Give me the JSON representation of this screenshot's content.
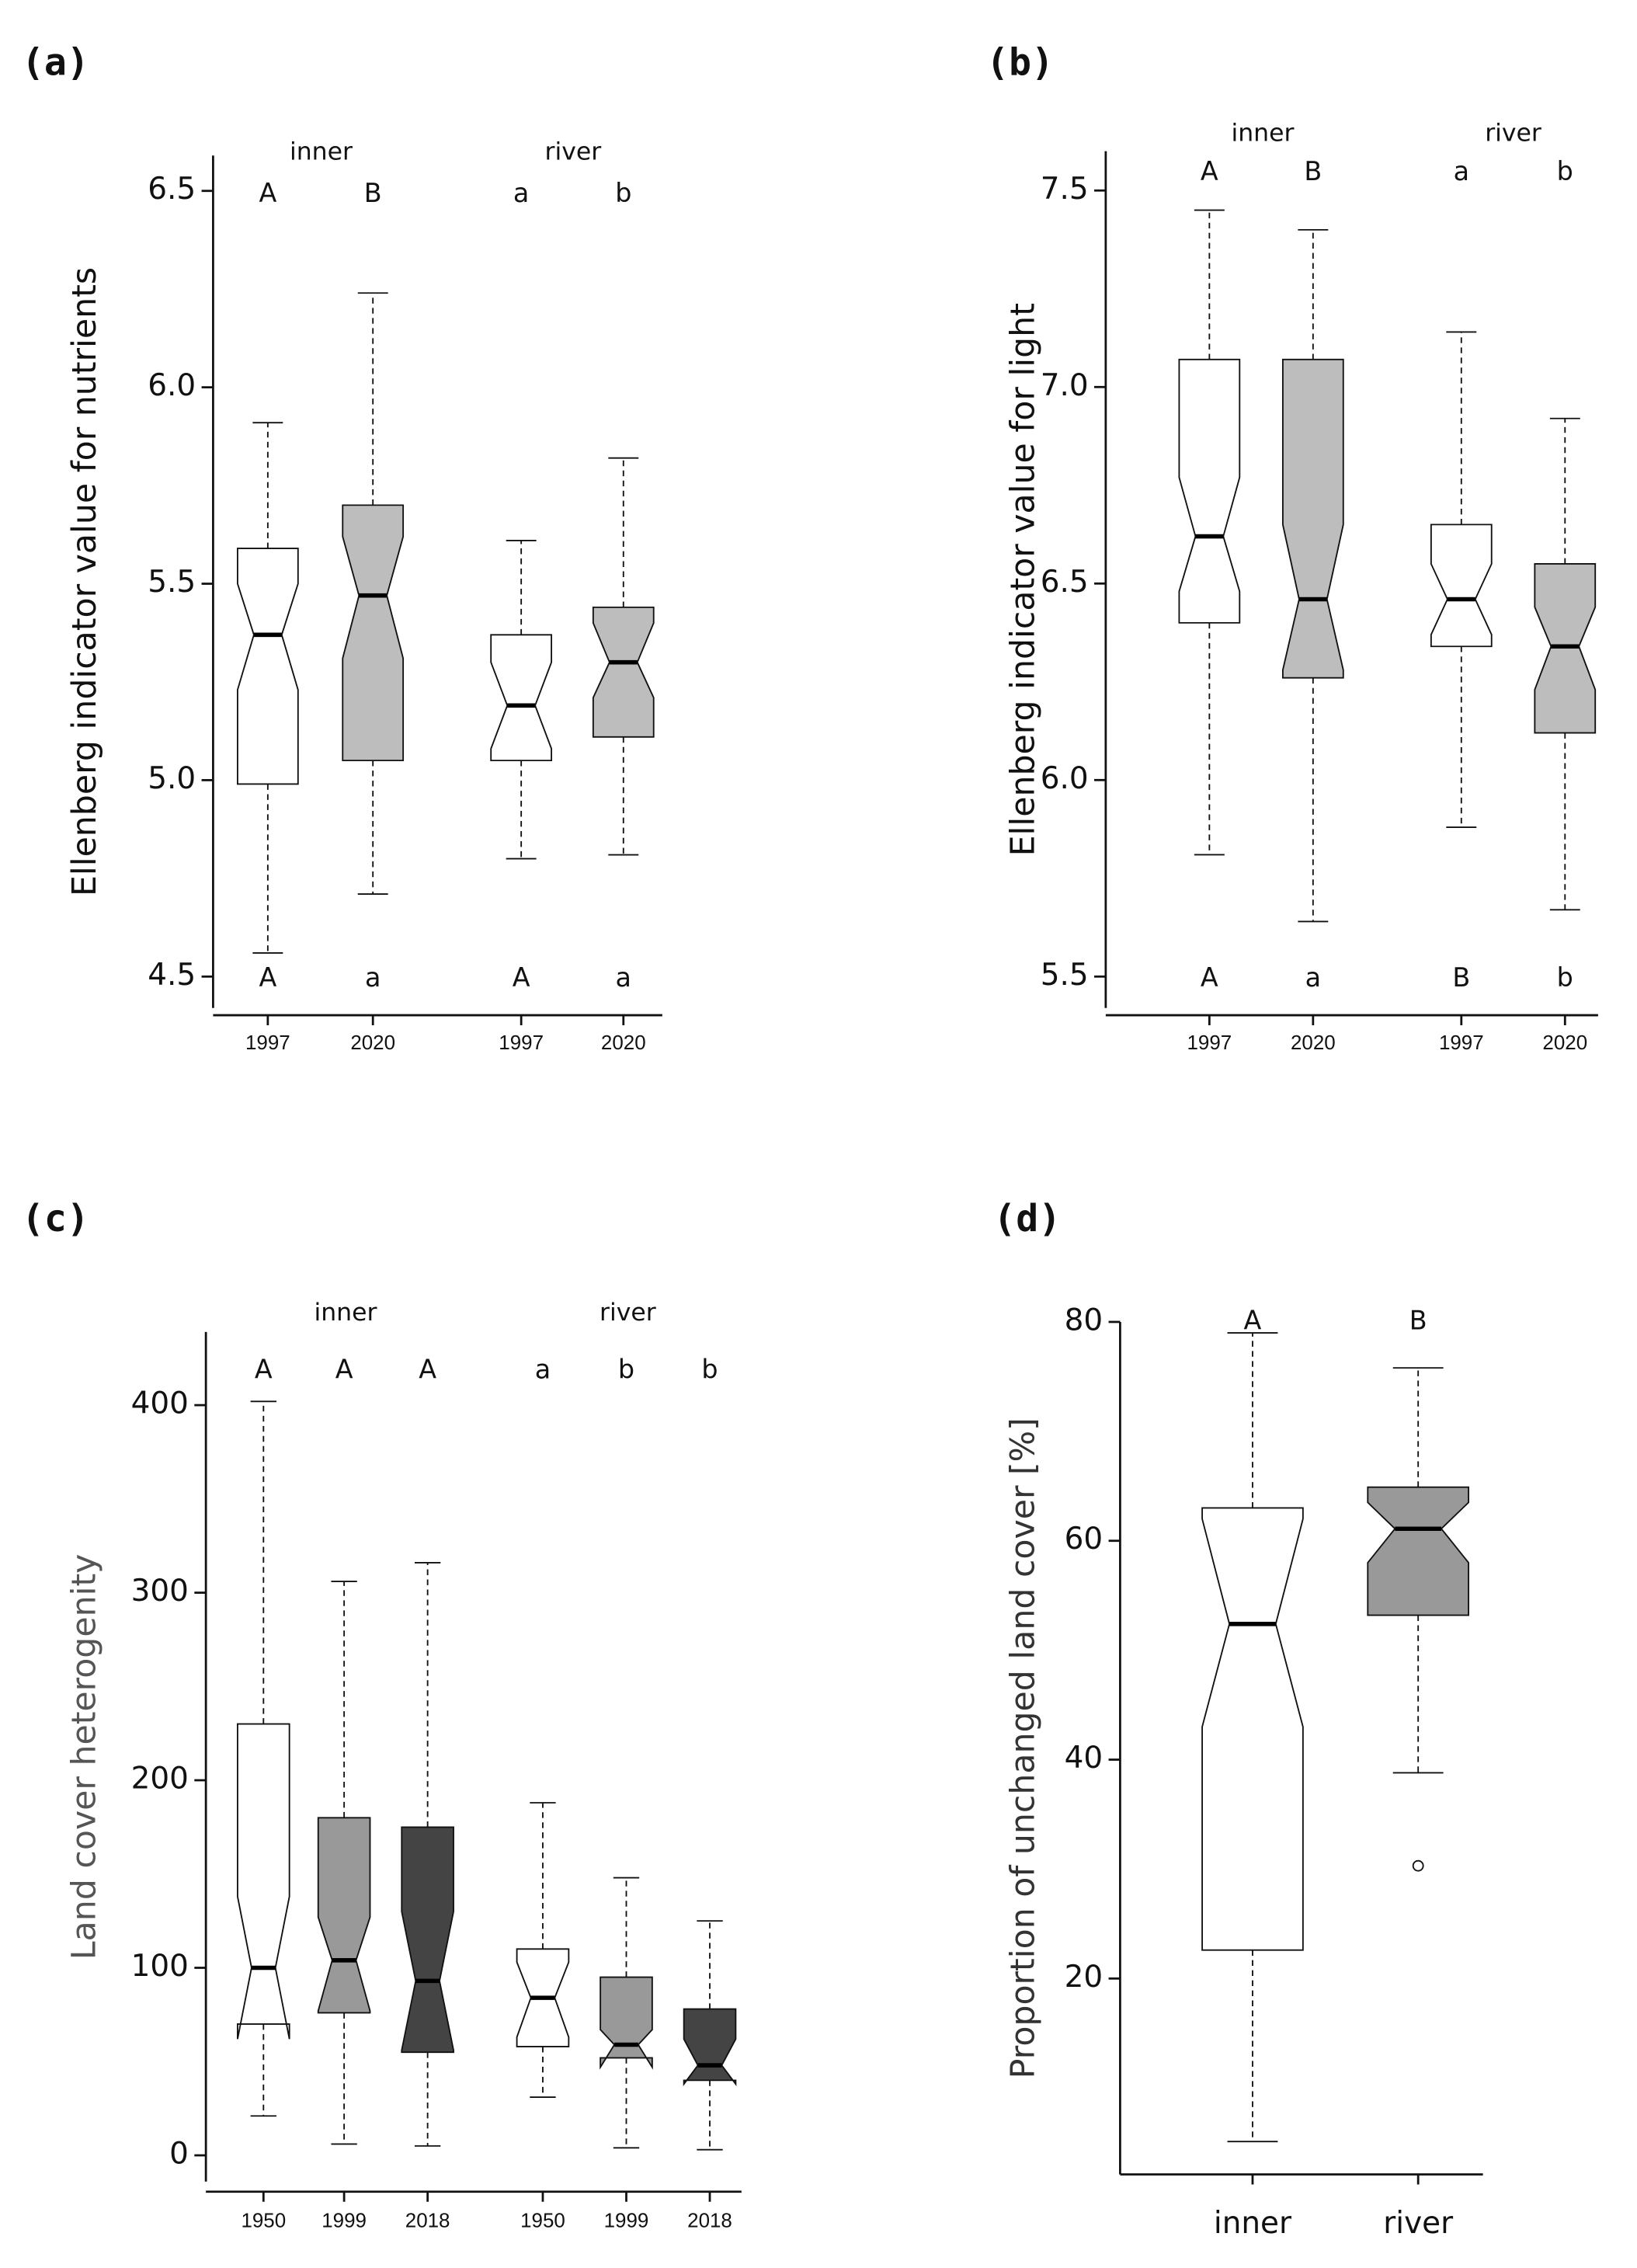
{
  "chart_data": [
    {
      "type": "box",
      "title": "(a)",
      "ylabel": "Ellenberg indicator value for nutrients",
      "groups": [
        "inner",
        "river"
      ],
      "categories": [
        "1997",
        "2020",
        "1997",
        "2020"
      ],
      "ylim": [
        4.42,
        6.59
      ],
      "yticks": [
        4.5,
        {
          "value": 5,
          "label": "5.0"
        },
        5.5,
        {
          "value": 6,
          "label": "6.0"
        },
        6.5
      ],
      "letters_top": [
        "A",
        "B",
        "a",
        "b"
      ],
      "letters_bottom": [
        "A",
        "a",
        "A",
        "a"
      ],
      "boxes": [
        {
          "whisker_low": 4.56,
          "q1": 4.99,
          "median": 5.37,
          "q3": 5.59,
          "whisker_high": 5.91,
          "notch_low": 5.23,
          "notch_high": 5.5,
          "fill": "#ffffff"
        },
        {
          "whisker_low": 4.71,
          "q1": 5.05,
          "median": 5.47,
          "q3": 5.7,
          "whisker_high": 6.24,
          "notch_low": 5.31,
          "notch_high": 5.62,
          "fill": "#bdbdbd"
        },
        {
          "whisker_low": 4.8,
          "q1": 5.05,
          "median": 5.19,
          "q3": 5.37,
          "whisker_high": 5.61,
          "notch_low": 5.08,
          "notch_high": 5.3,
          "fill": "#ffffff"
        },
        {
          "whisker_low": 4.81,
          "q1": 5.11,
          "median": 5.3,
          "q3": 5.44,
          "whisker_high": 5.82,
          "notch_low": 5.21,
          "notch_high": 5.4,
          "fill": "#bdbdbd"
        }
      ]
    },
    {
      "type": "box",
      "title": "(b)",
      "ylabel": "Ellenberg indicator value for light",
      "groups": [
        "inner",
        "river"
      ],
      "categories": [
        "1997",
        "2020",
        "1997",
        "2020"
      ],
      "ylim": [
        5.42,
        7.6
      ],
      "yticks": [
        5.5,
        {
          "value": 6,
          "label": "6.0"
        },
        6.5,
        {
          "value": 7,
          "label": "7.0"
        },
        7.5
      ],
      "letters_top": [
        "A",
        "B",
        "a",
        "b"
      ],
      "letters_bottom": [
        "A",
        "a",
        "B",
        "b"
      ],
      "boxes": [
        {
          "whisker_low": 5.81,
          "q1": 6.4,
          "median": 6.62,
          "q3": 7.07,
          "whisker_high": 7.45,
          "notch_low": 6.48,
          "notch_high": 6.77,
          "fill": "#ffffff"
        },
        {
          "whisker_low": 5.64,
          "q1": 6.26,
          "median": 6.46,
          "q3": 7.07,
          "whisker_high": 7.4,
          "notch_low": 6.28,
          "notch_high": 6.65,
          "fill": "#bdbdbd"
        },
        {
          "whisker_low": 5.88,
          "q1": 6.34,
          "median": 6.46,
          "q3": 6.65,
          "whisker_high": 7.14,
          "notch_low": 6.37,
          "notch_high": 6.55,
          "fill": "#ffffff"
        },
        {
          "whisker_low": 5.67,
          "q1": 6.12,
          "median": 6.34,
          "q3": 6.55,
          "whisker_high": 6.92,
          "notch_low": 6.23,
          "notch_high": 6.44,
          "fill": "#bdbdbd"
        }
      ]
    },
    {
      "type": "box",
      "title": "(c)",
      "ylabel": "Land cover heterogenity",
      "groups": [
        "inner",
        "river"
      ],
      "categories": [
        "1950",
        "1999",
        "2018",
        "1950",
        "1999",
        "2018"
      ],
      "ylim": [
        -14,
        439
      ],
      "yticks": [
        0,
        100,
        200,
        300,
        400
      ],
      "letters_top": [
        "A",
        "A",
        "A",
        "a",
        "b",
        "b"
      ],
      "boxes": [
        {
          "whisker_low": 21,
          "q1": 70,
          "median": 100,
          "q3": 230,
          "whisker_high": 402,
          "notch_low": 62,
          "notch_high": 138,
          "fill": "#ffffff"
        },
        {
          "whisker_low": 6,
          "q1": 76,
          "median": 104,
          "q3": 180,
          "whisker_high": 306,
          "notch_low": 77,
          "notch_high": 127,
          "fill": "#999999"
        },
        {
          "whisker_low": 5,
          "q1": 55,
          "median": 93,
          "q3": 175,
          "whisker_high": 316,
          "notch_low": 56,
          "notch_high": 130,
          "fill": "#444444"
        },
        {
          "whisker_low": 31,
          "q1": 58,
          "median": 84,
          "q3": 110,
          "whisker_high": 188,
          "notch_low": 63,
          "notch_high": 103,
          "fill": "#ffffff"
        },
        {
          "whisker_low": 4,
          "q1": 52,
          "median": 59,
          "q3": 95,
          "whisker_high": 148,
          "notch_low": 47,
          "notch_high": 67,
          "fill": "#999999"
        },
        {
          "whisker_low": 3,
          "q1": 40,
          "median": 48,
          "q3": 78,
          "whisker_high": 125,
          "notch_low": 38,
          "notch_high": 62,
          "fill": "#444444"
        }
      ]
    },
    {
      "type": "box",
      "title": "(d)",
      "ylabel": "Proportion of unchanged land cover [%]",
      "categories": [
        "inner",
        "river"
      ],
      "ylim": [
        2.1,
        80
      ],
      "yticks": [
        20,
        40,
        60,
        80
      ],
      "letters_top": [
        "A",
        "B"
      ],
      "boxes": [
        {
          "whisker_low": 5.1,
          "q1": 22.6,
          "median": 52.4,
          "q3": 63,
          "whisker_high": 79,
          "notch_low": 43,
          "notch_high": 62,
          "fill": "#ffffff"
        },
        {
          "whisker_low": 38.8,
          "q1": 53.2,
          "median": 61.1,
          "q3": 64.9,
          "whisker_high": 75.8,
          "notch_low": 58,
          "notch_high": 63.5,
          "fill": "#999999",
          "outliers": [
            30.3
          ]
        }
      ]
    }
  ]
}
